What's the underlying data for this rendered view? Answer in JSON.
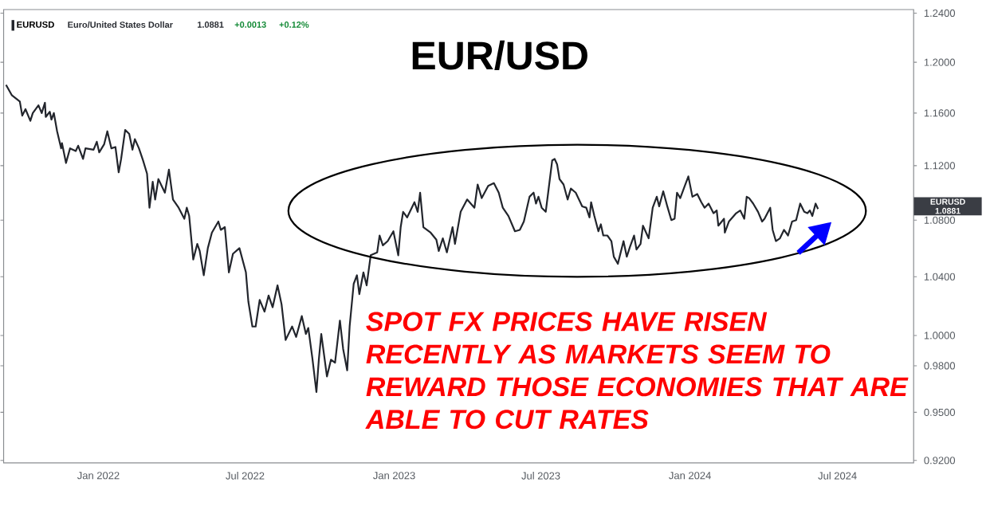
{
  "chart_data": {
    "type": "line",
    "title": "EUR/USD",
    "x": [
      "2021-09-09",
      "2021-09-16",
      "2021-09-26",
      "2021-09-29",
      "2021-10-03",
      "2021-10-09",
      "2021-10-12",
      "2021-10-19",
      "2021-10-23",
      "2021-10-27",
      "2021-10-28",
      "2021-11-02",
      "2021-11-04",
      "2021-11-07",
      "2021-11-11",
      "2021-11-16",
      "2021-11-17",
      "2021-11-22",
      "2021-11-27",
      "2021-12-04",
      "2021-12-07",
      "2021-12-13",
      "2021-12-16",
      "2021-12-26",
      "2021-12-30",
      "2022-01-02",
      "2022-01-08",
      "2022-01-12",
      "2022-01-17",
      "2022-01-22",
      "2022-01-26",
      "2022-01-29",
      "2022-02-03",
      "2022-02-08",
      "2022-02-12",
      "2022-02-15",
      "2022-02-20",
      "2022-02-25",
      "2022-03-02",
      "2022-03-05",
      "2022-03-09",
      "2022-03-12",
      "2022-03-16",
      "2022-03-24",
      "2022-03-29",
      "2022-04-03",
      "2022-04-10",
      "2022-04-17",
      "2022-04-20",
      "2022-04-23",
      "2022-04-28",
      "2022-05-03",
      "2022-05-06",
      "2022-05-11",
      "2022-05-16",
      "2022-05-21",
      "2022-05-29",
      "2022-06-01",
      "2022-06-06",
      "2022-06-11",
      "2022-06-16",
      "2022-06-24",
      "2022-07-02",
      "2022-07-05",
      "2022-07-10",
      "2022-07-14",
      "2022-07-19",
      "2022-07-25",
      "2022-07-30",
      "2022-08-04",
      "2022-08-10",
      "2022-08-15",
      "2022-08-20",
      "2022-08-28",
      "2022-09-02",
      "2022-09-09",
      "2022-09-14",
      "2022-09-17",
      "2022-09-22",
      "2022-09-27",
      "2022-09-30",
      "2022-10-03",
      "2022-10-10",
      "2022-10-15",
      "2022-10-20",
      "2022-10-26",
      "2022-10-30",
      "2022-11-04",
      "2022-11-07",
      "2022-11-12",
      "2022-11-16",
      "2022-11-19",
      "2022-11-24",
      "2022-11-28",
      "2022-12-03",
      "2022-12-11",
      "2022-12-14",
      "2022-12-18",
      "2022-12-24",
      "2022-12-31",
      "2023-01-06",
      "2023-01-09",
      "2023-01-12",
      "2023-01-17",
      "2023-01-26",
      "2023-01-30",
      "2023-02-02",
      "2023-02-06",
      "2023-02-15",
      "2023-02-22",
      "2023-02-25",
      "2023-03-02",
      "2023-03-07",
      "2023-03-14",
      "2023-03-17",
      "2023-03-24",
      "2023-04-01",
      "2023-04-10",
      "2023-04-14",
      "2023-04-19",
      "2023-04-27",
      "2023-05-04",
      "2023-05-10",
      "2023-05-15",
      "2023-05-22",
      "2023-05-30",
      "2023-06-05",
      "2023-06-10",
      "2023-06-17",
      "2023-06-22",
      "2023-06-25",
      "2023-06-28",
      "2023-07-02",
      "2023-07-07",
      "2023-07-10",
      "2023-07-15",
      "2023-07-18",
      "2023-07-21",
      "2023-07-24",
      "2023-07-29",
      "2023-08-03",
      "2023-08-07",
      "2023-08-13",
      "2023-08-21",
      "2023-08-26",
      "2023-08-30",
      "2023-09-01",
      "2023-09-05",
      "2023-09-10",
      "2023-09-13",
      "2023-09-16",
      "2023-09-21",
      "2023-09-26",
      "2023-09-29",
      "2023-10-04",
      "2023-10-11",
      "2023-10-15",
      "2023-10-19",
      "2023-10-24",
      "2023-10-27",
      "2023-11-01",
      "2023-11-04",
      "2023-11-11",
      "2023-11-16",
      "2023-11-21",
      "2023-11-24",
      "2023-11-29",
      "2023-12-04",
      "2023-12-09",
      "2023-12-13",
      "2023-12-16",
      "2023-12-20",
      "2023-12-25",
      "2023-12-30",
      "2024-01-04",
      "2024-01-10",
      "2024-01-15",
      "2024-01-19",
      "2024-01-24",
      "2024-01-30",
      "2024-02-03",
      "2024-02-05",
      "2024-02-12",
      "2024-02-13",
      "2024-02-18",
      "2024-02-27",
      "2024-03-03",
      "2024-03-08",
      "2024-03-11",
      "2024-03-14",
      "2024-03-19",
      "2024-03-25",
      "2024-03-30",
      "2024-04-02",
      "2024-04-09",
      "2024-04-12",
      "2024-04-16",
      "2024-04-21",
      "2024-04-26",
      "2024-05-01",
      "2024-05-06",
      "2024-05-11",
      "2024-05-16",
      "2024-05-21",
      "2024-05-25",
      "2024-05-28",
      "2024-05-31",
      "2024-06-04",
      "2024-06-07"
    ],
    "series": [
      {
        "name": "EURUSD",
        "color": "#22252c",
        "values": [
          1.182,
          1.174,
          1.169,
          1.158,
          1.163,
          1.154,
          1.16,
          1.166,
          1.16,
          1.168,
          1.157,
          1.161,
          1.155,
          1.16,
          1.146,
          1.133,
          1.137,
          1.122,
          1.133,
          1.131,
          1.135,
          1.125,
          1.133,
          1.132,
          1.138,
          1.13,
          1.136,
          1.146,
          1.133,
          1.134,
          1.115,
          1.125,
          1.147,
          1.144,
          1.132,
          1.14,
          1.133,
          1.124,
          1.114,
          1.089,
          1.108,
          1.095,
          1.11,
          1.1,
          1.117,
          1.095,
          1.089,
          1.081,
          1.089,
          1.083,
          1.052,
          1.063,
          1.058,
          1.041,
          1.06,
          1.071,
          1.079,
          1.073,
          1.075,
          1.043,
          1.056,
          1.06,
          1.043,
          1.023,
          1.006,
          1.006,
          1.024,
          1.016,
          1.027,
          1.019,
          1.034,
          1.021,
          0.997,
          1.006,
          0.999,
          1.013,
          1.001,
          1.005,
          0.985,
          0.963,
          0.984,
          1.001,
          0.973,
          0.984,
          0.982,
          1.01,
          0.991,
          0.977,
          1.006,
          1.035,
          1.041,
          1.028,
          1.043,
          1.034,
          1.055,
          1.057,
          1.069,
          1.062,
          1.065,
          1.072,
          1.055,
          1.075,
          1.086,
          1.082,
          1.093,
          1.086,
          1.1,
          1.075,
          1.071,
          1.066,
          1.058,
          1.067,
          1.057,
          1.075,
          1.063,
          1.086,
          1.095,
          1.089,
          1.106,
          1.096,
          1.105,
          1.107,
          1.1,
          1.089,
          1.083,
          1.072,
          1.073,
          1.079,
          1.097,
          1.1,
          1.092,
          1.097,
          1.089,
          1.086,
          1.1,
          1.124,
          1.125,
          1.121,
          1.11,
          1.106,
          1.095,
          1.103,
          1.1,
          1.09,
          1.089,
          1.082,
          1.093,
          1.083,
          1.072,
          1.077,
          1.069,
          1.069,
          1.065,
          1.054,
          1.049,
          1.065,
          1.054,
          1.061,
          1.069,
          1.059,
          1.063,
          1.076,
          1.067,
          1.089,
          1.097,
          1.09,
          1.101,
          1.09,
          1.08,
          1.081,
          1.1,
          1.096,
          1.104,
          1.112,
          1.097,
          1.099,
          1.093,
          1.089,
          1.092,
          1.085,
          1.087,
          1.076,
          1.081,
          1.071,
          1.079,
          1.085,
          1.087,
          1.081,
          1.097,
          1.096,
          1.092,
          1.086,
          1.079,
          1.081,
          1.089,
          1.073,
          1.065,
          1.067,
          1.073,
          1.069,
          1.079,
          1.08,
          1.092,
          1.086,
          1.085,
          1.087,
          1.083,
          1.092,
          1.0881
        ]
      }
    ],
    "xlim": [
      "2021-09-06",
      "2024-10-03"
    ],
    "ylim": [
      0.9185,
      1.243
    ],
    "xticks": [
      {
        "value": "2022-01-01",
        "label": "Jan 2022"
      },
      {
        "value": "2022-07-01",
        "label": "Jul 2022"
      },
      {
        "value": "2023-01-01",
        "label": "Jan 2023"
      },
      {
        "value": "2023-07-01",
        "label": "Jul 2023"
      },
      {
        "value": "2024-01-01",
        "label": "Jan 2024"
      },
      {
        "value": "2024-07-01",
        "label": "Jul 2024"
      }
    ],
    "yticks": [
      {
        "value": 0.92,
        "label": "0.9200"
      },
      {
        "value": 0.95,
        "label": "0.9500"
      },
      {
        "value": 0.98,
        "label": "0.9800"
      },
      {
        "value": 1.0,
        "label": "1.0000"
      },
      {
        "value": 1.04,
        "label": "1.0400"
      },
      {
        "value": 1.08,
        "label": "1.0800"
      },
      {
        "value": 1.12,
        "label": "1.1200"
      },
      {
        "value": 1.16,
        "label": "1.1600"
      },
      {
        "value": 1.2,
        "label": "1.2000"
      },
      {
        "value": 1.24,
        "label": "1.2400"
      }
    ],
    "log": true,
    "legend": "top left",
    "marker": "none",
    "line_style": "solid",
    "annotations": [
      "Euro/United States Dollar",
      "1.0881",
      "+0.0013",
      "+0.12%",
      "EURUSD",
      "1.0881",
      "SPOT FX PRICES HAVE RISEN RECENTLY AS MARKETS SEEM TO REWARD THOSE ECONOMIES THAT ARE ABLE TO CUT RATES"
    ]
  }
}
